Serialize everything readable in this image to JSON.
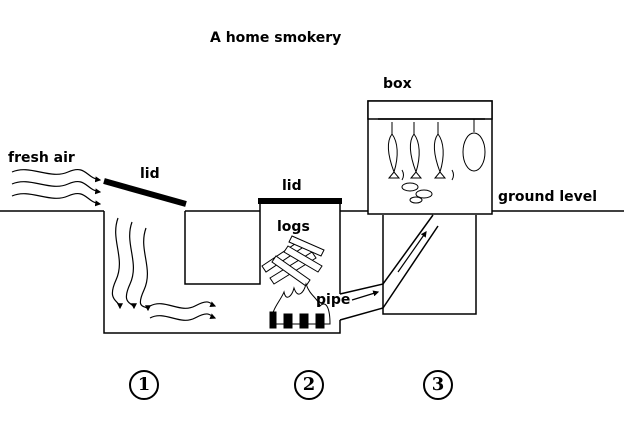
{
  "title": "A home smokery",
  "labels": {
    "fresh_air": "fresh air",
    "lid_1": "lid",
    "lid_2": "lid",
    "logs": "logs",
    "pipe": "pipe",
    "box": "box",
    "ground_level": "ground level"
  },
  "stage_numbers": [
    "1",
    "2",
    "3"
  ]
}
